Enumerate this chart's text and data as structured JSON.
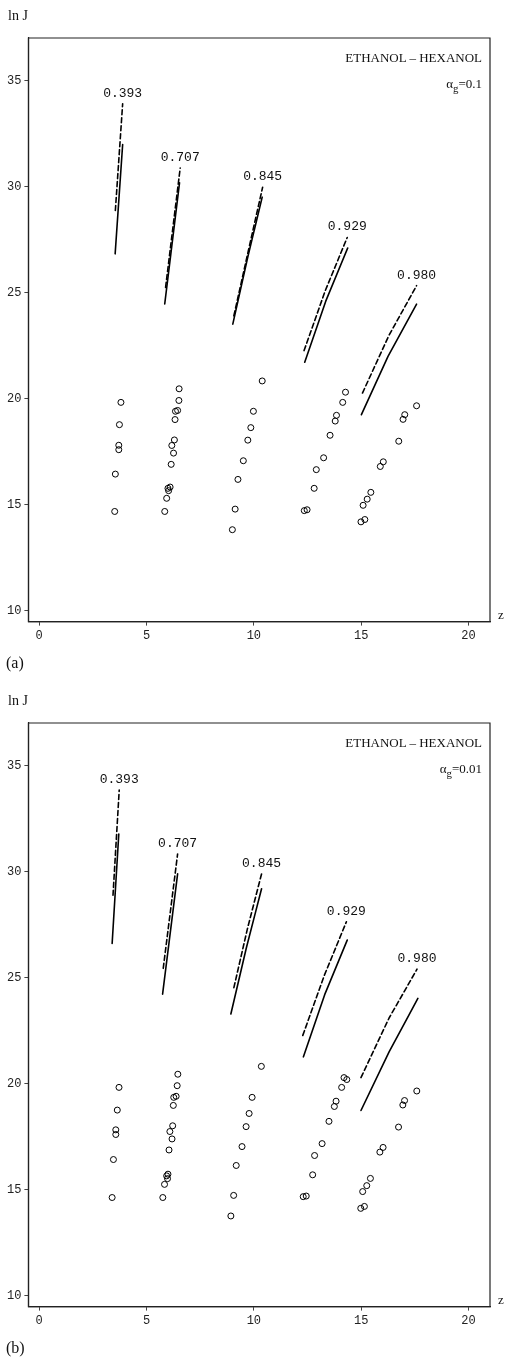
{
  "chart_data": [
    {
      "type": "line",
      "ylabel": "ln J",
      "xlabel": "z",
      "xlim": [
        -0.5,
        21
      ],
      "ylim": [
        9.5,
        37
      ],
      "xticks": [
        0,
        5,
        10,
        15,
        20
      ],
      "yticks": [
        10,
        15,
        20,
        25,
        30,
        35
      ],
      "grid": false,
      "legend": false,
      "marker": "none",
      "line_style": "solid",
      "annotations": [
        "ETHANOL – HEXANOL",
        "α$_{g}$=0.1",
        "(a)",
        {
          "text": "0.393",
          "x": 3.89,
          "y": 33.9
        },
        {
          "text": "0.707",
          "x": 6.57,
          "y": 30.87
        },
        {
          "text": "0.845",
          "x": 10.41,
          "y": 29.97
        },
        {
          "text": "0.929",
          "x": 14.35,
          "y": 27.6
        },
        {
          "text": "0.980",
          "x": 17.58,
          "y": 25.33
        }
      ],
      "series": [
        {
          "color": "#000000",
          "x": [
            3.54,
            3.89
          ],
          "values": [
            26.83,
            31.98
          ]
        },
        {
          "color": "#000000",
          "line_style": "dashed",
          "x": [
            3.55,
            3.89
          ],
          "values": [
            28.87,
            33.9
          ]
        },
        {
          "color": "#000000",
          "x": [
            5.85,
            6.54
          ],
          "values": [
            24.47,
            30.18
          ]
        },
        {
          "color": "#000000",
          "line_style": "dashed",
          "x": [
            5.89,
            6.57
          ],
          "values": [
            25.25,
            30.87
          ]
        },
        {
          "color": "#000000",
          "x": [
            9.02,
            9.7,
            10.39
          ],
          "values": [
            23.52,
            26.6,
            29.5
          ]
        },
        {
          "color": "#000000",
          "line_style": "dashed",
          "x": [
            9.07,
            9.75,
            10.41
          ],
          "values": [
            23.91,
            27.0,
            29.97
          ]
        },
        {
          "color": "#000000",
          "x": [
            12.37,
            13.35,
            14.37
          ],
          "values": [
            21.72,
            24.6,
            27.1
          ]
        },
        {
          "color": "#000000",
          "line_style": "dashed",
          "x": [
            12.34,
            13.33,
            14.35
          ],
          "values": [
            22.27,
            25.1,
            27.6
          ]
        },
        {
          "color": "#000000",
          "x": [
            15.01,
            16.25,
            17.58
          ],
          "values": [
            19.25,
            22.0,
            24.46
          ]
        },
        {
          "color": "#000000",
          "line_style": "dashed",
          "x": [
            15.06,
            16.3,
            17.58
          ],
          "values": [
            20.27,
            23.0,
            25.33
          ]
        },
        {
          "type": "scatter",
          "marker": "circle",
          "color": "#000000",
          "x": [
            3.81,
            3.74,
            3.71,
            3.71,
            3.55,
            3.52,
            6.52,
            6.51,
            6.45,
            6.35,
            6.33,
            6.3,
            6.18,
            6.26,
            6.15,
            6.0,
            6.1,
            6.03,
            5.94,
            5.85,
            10.39,
            9.98,
            9.86,
            9.72,
            9.51,
            9.26,
            9.13,
            9.0,
            14.27,
            14.14,
            13.85,
            13.79,
            13.55,
            13.25,
            12.91,
            12.81,
            12.35,
            12.48,
            17.58,
            17.03,
            16.95,
            16.75,
            16.03,
            15.89,
            15.45,
            15.28,
            15.09,
            15.17,
            14.99
          ],
          "values": [
            19.83,
            18.78,
            17.81,
            17.6,
            16.45,
            14.69,
            20.47,
            19.92,
            19.45,
            19.41,
            19.02,
            18.06,
            17.8,
            17.44,
            16.91,
            15.78,
            15.84,
            15.67,
            15.31,
            14.69,
            20.84,
            19.41,
            18.64,
            18.05,
            17.08,
            16.2,
            14.8,
            13.83,
            20.31,
            19.83,
            19.22,
            18.95,
            18.28,
            17.22,
            16.66,
            15.78,
            14.73,
            14.77,
            19.67,
            19.25,
            19.03,
            18.0,
            17.03,
            16.81,
            15.59,
            15.27,
            14.98,
            14.31,
            14.2
          ]
        }
      ]
    },
    {
      "type": "line",
      "ylabel": "ln J",
      "xlabel": "z",
      "xlim": [
        -0.5,
        21
      ],
      "ylim": [
        9.5,
        37
      ],
      "xticks": [
        0,
        5,
        10,
        15,
        20
      ],
      "yticks": [
        10,
        15,
        20,
        25,
        30,
        35
      ],
      "grid": false,
      "legend": false,
      "marker": "none",
      "line_style": "solid",
      "annotations": [
        "ETHANOL – HEXANOL",
        "α$_{g}$=0.01",
        "(b)",
        {
          "text": "0.393",
          "x": 3.73,
          "y": 33.84
        },
        {
          "text": "0.707",
          "x": 6.45,
          "y": 30.83
        },
        {
          "text": "0.845",
          "x": 10.36,
          "y": 29.89
        },
        {
          "text": "0.929",
          "x": 14.31,
          "y": 27.63
        },
        {
          "text": "0.980",
          "x": 17.6,
          "y": 25.4
        }
      ],
      "series": [
        {
          "color": "#000000",
          "x": [
            3.4,
            3.71
          ],
          "values": [
            26.61,
            31.77
          ]
        },
        {
          "color": "#000000",
          "line_style": "dashed",
          "x": [
            3.44,
            3.73
          ],
          "values": [
            28.88,
            33.84
          ]
        },
        {
          "color": "#000000",
          "x": [
            5.75,
            6.45
          ],
          "values": [
            24.22,
            29.89
          ]
        },
        {
          "color": "#000000",
          "line_style": "dashed",
          "x": [
            5.78,
            6.45
          ],
          "values": [
            25.44,
            30.83
          ]
        },
        {
          "color": "#000000",
          "x": [
            8.93,
            9.65,
            10.36
          ],
          "values": [
            23.29,
            26.4,
            29.19
          ]
        },
        {
          "color": "#000000",
          "line_style": "dashed",
          "x": [
            9.07,
            9.7,
            10.36
          ],
          "values": [
            24.53,
            27.3,
            29.89
          ]
        },
        {
          "color": "#000000",
          "x": [
            12.31,
            13.3,
            14.35
          ],
          "values": [
            21.27,
            24.2,
            26.77
          ]
        },
        {
          "color": "#000000",
          "line_style": "dashed",
          "x": [
            12.28,
            13.28,
            14.31
          ],
          "values": [
            22.28,
            25.1,
            27.63
          ]
        },
        {
          "color": "#000000",
          "x": [
            14.99,
            16.3,
            17.64
          ],
          "values": [
            18.74,
            21.5,
            24.02
          ]
        },
        {
          "color": "#000000",
          "line_style": "dashed",
          "x": [
            14.99,
            16.3,
            17.6
          ],
          "values": [
            20.29,
            23.1,
            25.4
          ]
        },
        {
          "type": "scatter",
          "marker": "circle",
          "color": "#000000",
          "x": [
            3.72,
            3.64,
            3.57,
            3.57,
            3.46,
            3.4,
            6.46,
            6.43,
            6.38,
            6.27,
            6.25,
            6.22,
            6.09,
            6.19,
            6.05,
            6.0,
            5.94,
            5.98,
            5.84,
            5.76,
            10.35,
            9.92,
            9.78,
            9.64,
            9.45,
            9.18,
            9.06,
            8.93,
            14.2,
            14.33,
            14.09,
            13.83,
            13.75,
            13.5,
            13.18,
            12.83,
            12.74,
            12.44,
            12.3,
            17.59,
            17.02,
            16.94,
            16.74,
            16.02,
            15.87,
            15.43,
            15.26,
            15.07,
            15.15,
            14.98
          ],
          "values": [
            19.83,
            18.76,
            17.83,
            17.61,
            16.43,
            14.64,
            20.45,
            19.91,
            19.41,
            19.36,
            18.98,
            18.02,
            17.75,
            17.4,
            16.88,
            15.74,
            15.66,
            15.53,
            15.26,
            14.64,
            20.82,
            19.36,
            18.6,
            17.98,
            17.04,
            16.15,
            14.74,
            13.77,
            20.29,
            20.2,
            19.83,
            19.18,
            18.93,
            18.23,
            17.18,
            16.62,
            15.71,
            14.71,
            14.68,
            19.66,
            19.21,
            19.0,
            17.96,
            17.0,
            16.78,
            15.54,
            15.2,
            14.92,
            14.22,
            14.13
          ]
        }
      ]
    }
  ]
}
